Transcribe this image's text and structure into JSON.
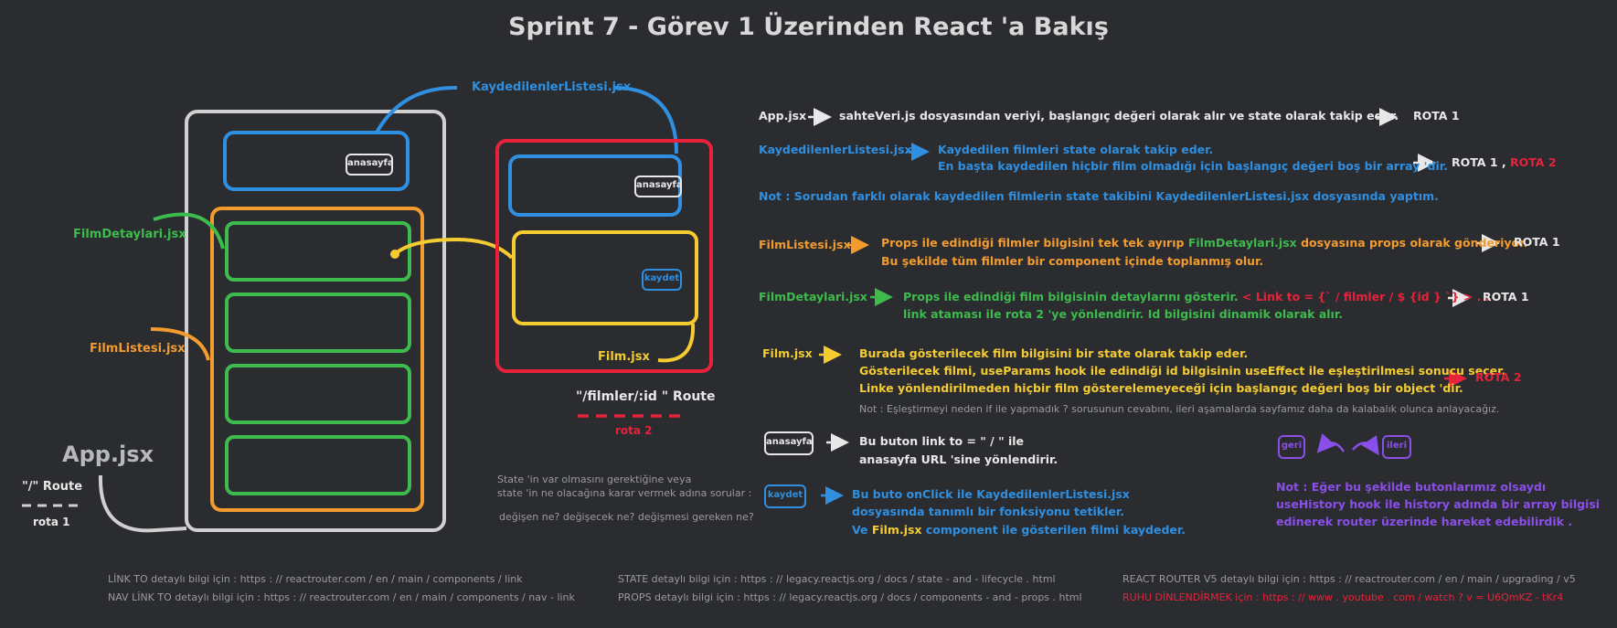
{
  "title": "Sprint 7 - Görev 1 Üzerinden React 'a Bakış",
  "diagram": {
    "kaydedilen_label": "KaydedilenlerListesi.jsx",
    "filmdetaylari_label": "FilmDetaylari.jsx",
    "filmlistesi_label": "FilmListesi.jsx",
    "appjsx_label": "App.jsx",
    "root_route": "\"/\" Route",
    "rota1": "rota 1",
    "film_label": "Film.jsx",
    "film_route": "\"/filmler/:id \" Route",
    "rota2": "rota 2",
    "anasayfa_btn": "anasayfa",
    "kaydet_btn": "kaydet",
    "state_note_1": "State 'in var olmasını gerektiğine veya",
    "state_note_2": "state 'in ne olacağına karar vermek adına sorular :",
    "state_note_3": "değişen ne? değişecek ne? değişmesi gereken ne?"
  },
  "notes": {
    "app_name": "App.jsx",
    "app_desc": "sahteVeri.js dosyasından veriyi,  başlangıç değeri olarak alır ve state olarak takip eder.",
    "app_rota": "ROTA 1",
    "kl_name": "KaydedilenlerListesi.jsx",
    "kl_desc_1": "Kaydedilen filmleri state olarak takip eder.",
    "kl_desc_2": "En başta kaydedilen hiçbir film olmadığı için başlangıç değeri boş bir array 'dir.",
    "kl_rota_a": "ROTA 1 ,",
    "kl_rota_b": "ROTA 2",
    "not1": "Not : Sorudan farklı olarak kaydedilen filmlerin state takibini KaydedilenlerListesi.jsx dosyasında yaptım.",
    "fl_name": "FilmListesi.jsx",
    "fl_desc_1a": "Props ile edindiği filmler bilgisini tek tek ayırıp",
    "fl_desc_1b": "FilmDetaylari.jsx",
    "fl_desc_1c": "dosyasına props olarak gönderiyor.",
    "fl_desc_2": "Bu şekilde tüm filmler bir component içinde toplanmış olur.",
    "fl_rota": "ROTA 1",
    "fd_name": "FilmDetaylari.jsx",
    "fd_desc_1a": "Props ile edindiği film bilgisinin detaylarını gösterir.",
    "fd_desc_1b": "< Link to = {` / filmler / $ {id } `} > . . .",
    "fd_desc_2": "link ataması ile  rota 2 'ye yönlendirir. Id bilgisini dinamik olarak alır.",
    "fd_rota": "ROTA 1",
    "film_name": "Film.jsx",
    "film_desc_1": "Burada gösterilecek film bilgisini bir state olarak takip eder.",
    "film_desc_2": "Gösterilecek filmi, useParams hook ile edindiği id bilgisinin useEffect ile eşleştirilmesi sonucu seçer.",
    "film_desc_3": "Linke yönlendirilmeden hiçbir film gösterelemeyeceği için başlangıç değeri boş bir object 'dir.",
    "film_rota": "ROTA 2",
    "not2": "Not : Eşleştirmeyi neden if ile yapmadık ? sorusunun cevabını, ileri aşamalarda sayfamız daha da kalabalık olunca anlayacağız.",
    "anasayfa_btn": "anasayfa",
    "anasayfa_desc_1": "Bu buton link to = \" / \" ile",
    "anasayfa_desc_2": "anasayfa URL 'sine yönlendirir.",
    "kaydet_btn": "kaydet",
    "kaydet_desc_1": "Bu buto onClick ile KaydedilenlerListesi.jsx",
    "kaydet_desc_2": "dosyasında tanımlı bir fonksiyonu tetikler.",
    "kaydet_desc_3a": "Ve",
    "kaydet_desc_3b": "Film.jsx",
    "kaydet_desc_3c": "component ile gösterilen filmi kaydeder.",
    "geri_btn": "geri",
    "ileri_btn": "ileri",
    "history_1": "Not : Eğer bu şekilde butonlarımız olsaydı",
    "history_2": "useHistory hook ile history adında bir array bilgisi",
    "history_3": "edinerek router üzerinde hareket edebilirdik ."
  },
  "footer": {
    "link1": "LİNK TO detaylı bilgi için : https : // reactrouter.com / en / main / components / link",
    "link2": "NAV LİNK TO detaylı bilgi için : https : // reactrouter.com / en / main / components / nav - link",
    "link3": "STATE detaylı bilgi için : https : // legacy.reactjs.org / docs / state - and - lifecycle . html",
    "link4": "PROPS detaylı bilgi için : https : // legacy.reactjs.org / docs / components - and - props . html",
    "link5": "REACT ROUTER V5 detaylı bilgi için : https : // reactrouter.com / en / main / upgrading / v5",
    "link6": "RUHU DİNLENDİRMEK için : https : // www . youtube . com / watch ? v = U6QmKZ - tKr4"
  },
  "colors": {
    "background": "#2b2c30",
    "blue": "#2f8fe0",
    "orange": "#f39b2f",
    "green": "#3dbb4c",
    "yellow": "#f4cc32",
    "red": "#e8223a",
    "purple": "#8a4fe8",
    "white": "#e8e8e8"
  }
}
